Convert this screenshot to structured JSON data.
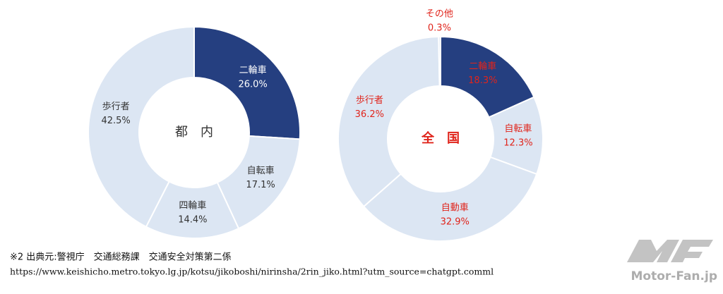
{
  "chart_data": [
    {
      "type": "pie",
      "center_label": "都　内",
      "categories": [
        "二輪車",
        "自転車",
        "四輪車",
        "歩行者"
      ],
      "values": [
        26.0,
        17.1,
        14.4,
        42.5
      ],
      "value_labels": [
        "26.0%",
        "17.1%",
        "14.4%",
        "42.5%"
      ],
      "colors": [
        "#253f80",
        "#dce6f3",
        "#dce6f3",
        "#dce6f3"
      ]
    },
    {
      "type": "pie",
      "center_label": "全　国",
      "categories": [
        "二輪車",
        "自転車",
        "自動車",
        "歩行者",
        "その他"
      ],
      "values": [
        18.3,
        12.3,
        32.9,
        36.2,
        0.3
      ],
      "value_labels": [
        "18.3%",
        "12.3%",
        "32.9%",
        "36.2%",
        "0.3%"
      ],
      "colors": [
        "#253f80",
        "#dce6f3",
        "#dce6f3",
        "#dce6f3",
        "#dce6f3"
      ]
    }
  ],
  "footnote": {
    "source": "※2 出典元:警視庁　交通総務課　交通安全対策第二係",
    "url": "https://www.keishicho.metro.tokyo.lg.jp/kotsu/jikoboshi/nirinsha/2rin_jiko.html?utm_source=chatgpt.comml"
  },
  "watermark": "Motor-Fan.jp"
}
